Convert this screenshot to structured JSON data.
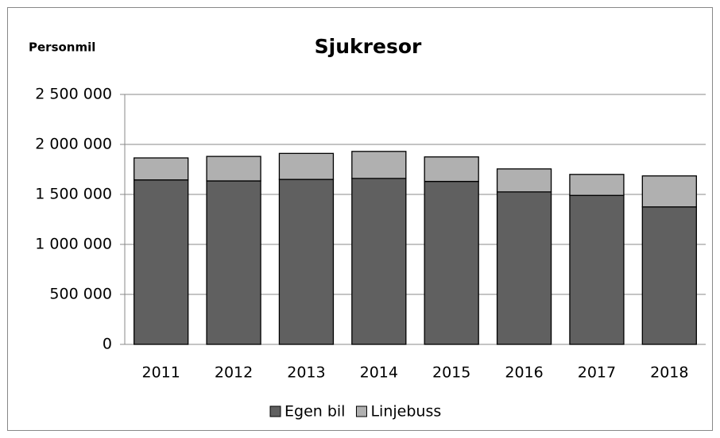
{
  "chart_data": {
    "type": "stacked_bar",
    "title": "Sjukresor",
    "y_label": "Personmil",
    "categories": [
      "2011",
      "2012",
      "2013",
      "2014",
      "2015",
      "2016",
      "2017",
      "2018"
    ],
    "series": [
      {
        "name": "Egen bil",
        "color": "#606060",
        "values": [
          1645000,
          1635000,
          1650000,
          1660000,
          1630000,
          1525000,
          1490000,
          1375000
        ]
      },
      {
        "name": "Linjebuss",
        "color": "#b0b0b0",
        "values": [
          220000,
          245000,
          260000,
          270000,
          245000,
          230000,
          210000,
          310000
        ]
      }
    ],
    "ylim": [
      0,
      2500000
    ],
    "yticks": [
      0,
      {
        "value": 500000,
        "label": "500 000"
      },
      {
        "value": 1000000,
        "label": "1 000 000"
      },
      {
        "value": 1500000,
        "label": "1 500 000"
      },
      {
        "value": 2000000,
        "label": "2 000 000"
      },
      {
        "value": 2500000,
        "label": "2 500 000"
      }
    ],
    "grid": true,
    "legend": "bottom"
  }
}
